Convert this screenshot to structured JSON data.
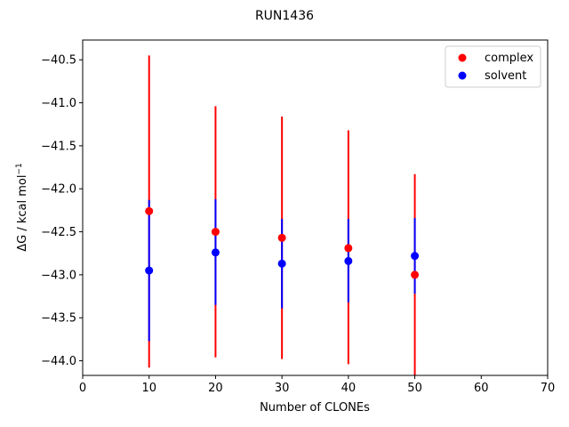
{
  "chart_data": {
    "type": "scatter",
    "title": "RUN1436",
    "xlabel": "Number of CLONEs",
    "ylabel_main": "ΔG / kcal mol",
    "ylabel_sup": "−1",
    "xlim": [
      0,
      70
    ],
    "ylim": [
      -44.17,
      -40.27
    ],
    "xticks": [
      0,
      10,
      20,
      30,
      40,
      50,
      60,
      70
    ],
    "yticks": [
      -44.0,
      -43.5,
      -43.0,
      -42.5,
      -42.0,
      -41.5,
      -41.0,
      -40.5
    ],
    "xtick_labels": [
      "0",
      "10",
      "20",
      "30",
      "40",
      "50",
      "60",
      "70"
    ],
    "ytick_labels": [
      "−44.0",
      "−43.5",
      "−43.0",
      "−42.5",
      "−42.0",
      "−41.5",
      "−41.0",
      "−40.5"
    ],
    "grid": false,
    "legend": {
      "placement": "top-right",
      "entries": [
        "complex",
        "solvent"
      ]
    },
    "series": [
      {
        "name": "complex",
        "color": "#ff0000",
        "x": [
          10,
          20,
          30,
          40,
          50
        ],
        "y": [
          -42.26,
          -42.5,
          -42.57,
          -42.69,
          -43.0
        ],
        "yerr_low": [
          -44.08,
          -43.96,
          -43.98,
          -44.04,
          -44.17
        ],
        "yerr_high": [
          -40.45,
          -41.04,
          -41.16,
          -41.32,
          -41.83
        ]
      },
      {
        "name": "solvent",
        "color": "#0000ff",
        "x": [
          10,
          20,
          30,
          40,
          50
        ],
        "y": [
          -42.95,
          -42.74,
          -42.87,
          -42.84,
          -42.78
        ],
        "yerr_low": [
          -43.77,
          -43.35,
          -43.39,
          -43.32,
          -43.22
        ],
        "yerr_high": [
          -42.13,
          -42.12,
          -42.35,
          -42.35,
          -42.34
        ]
      }
    ]
  }
}
